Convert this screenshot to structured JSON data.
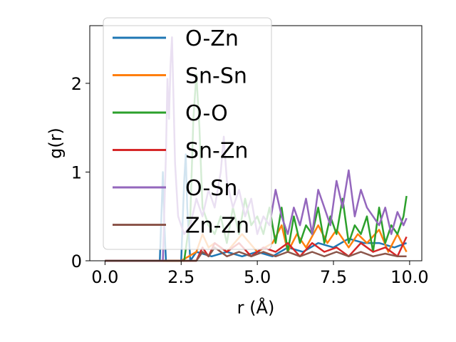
{
  "chart_data": {
    "type": "line",
    "xlabel": "r (Å)",
    "ylabel": "g(r)",
    "xlim": [
      -0.5,
      10.4
    ],
    "ylim": [
      0,
      2.65
    ],
    "xticks": [
      0.0,
      2.5,
      5.0,
      7.5,
      10.0
    ],
    "xtick_labels": [
      "0.0",
      "2.5",
      "5.0",
      "7.5",
      "10.0"
    ],
    "yticks": [
      0,
      1,
      2
    ],
    "ytick_labels": [
      "0",
      "1",
      "2"
    ],
    "grid": false,
    "legend_position": "top-left",
    "series": [
      {
        "name": "O-Zn",
        "color": "#1f77b4",
        "x": [
          0.0,
          1.8,
          1.85,
          1.9,
          1.95,
          2.0,
          2.1,
          2.2,
          2.5,
          2.6,
          2.65,
          2.7,
          2.8,
          3.0,
          3.5,
          4.0,
          4.5,
          5.0,
          5.5,
          6.0,
          6.5,
          7.0,
          7.5,
          8.0,
          8.5,
          9.0,
          9.5,
          9.9
        ],
        "y": [
          0,
          0,
          0.5,
          1.0,
          0.4,
          0,
          0,
          0,
          0,
          0.9,
          1.2,
          0.6,
          0,
          0.1,
          0.05,
          0.1,
          0.05,
          0.1,
          0.05,
          0.15,
          0.1,
          0.2,
          0.15,
          0.25,
          0.2,
          0.2,
          0.15,
          0.2
        ]
      },
      {
        "name": "Sn-Sn",
        "color": "#ff7f0e",
        "x": [
          0.0,
          2.5,
          3.0,
          3.2,
          3.4,
          3.6,
          4.0,
          4.5,
          5.0,
          5.5,
          5.8,
          6.0,
          6.3,
          6.6,
          7.0,
          7.3,
          7.6,
          8.0,
          8.3,
          8.6,
          9.0,
          9.3,
          9.6,
          9.9
        ],
        "y": [
          0,
          0,
          0.1,
          0.3,
          0.15,
          0.2,
          0.1,
          0.3,
          0.1,
          0.2,
          0.4,
          0.1,
          0.3,
          0.15,
          0.4,
          0.2,
          0.35,
          0.15,
          0.3,
          0.2,
          0.35,
          0.1,
          0.3,
          0.1
        ]
      },
      {
        "name": "O-O",
        "color": "#2ca02c",
        "x": [
          0.0,
          2.6,
          2.8,
          2.9,
          3.0,
          3.1,
          3.2,
          3.4,
          3.6,
          3.8,
          4.0,
          4.2,
          4.4,
          4.6,
          4.8,
          5.0,
          5.2,
          5.4,
          5.6,
          5.8,
          6.0,
          6.2,
          6.4,
          6.6,
          6.8,
          7.0,
          7.2,
          7.4,
          7.6,
          7.8,
          8.0,
          8.2,
          8.4,
          8.6,
          8.8,
          9.0,
          9.2,
          9.4,
          9.6,
          9.8,
          9.9
        ],
        "y": [
          0,
          0,
          0.5,
          1.6,
          2.1,
          1.5,
          0.6,
          0.4,
          0.3,
          0.5,
          0.2,
          0.6,
          0.3,
          0.7,
          0.4,
          0.5,
          0.3,
          0.6,
          0.2,
          0.6,
          0.1,
          0.5,
          0.2,
          0.4,
          0.3,
          0.6,
          0.2,
          0.5,
          0.3,
          0.7,
          0.2,
          0.4,
          0.3,
          0.5,
          0.1,
          0.6,
          0.2,
          0.4,
          0.3,
          0.5,
          0.73
        ]
      },
      {
        "name": "Sn-Zn",
        "color": "#d62728",
        "x": [
          0.0,
          3.0,
          3.2,
          3.4,
          3.6,
          4.0,
          4.4,
          4.8,
          5.2,
          5.6,
          6.0,
          6.4,
          6.8,
          7.2,
          7.6,
          8.0,
          8.4,
          8.8,
          9.2,
          9.6,
          9.9
        ],
        "y": [
          0,
          0,
          0.15,
          0.05,
          0.2,
          0.1,
          0.2,
          0.05,
          0.15,
          0.1,
          0.2,
          0.05,
          0.2,
          0.1,
          0.15,
          0.05,
          0.2,
          0.1,
          0.15,
          0.05,
          0.27
        ]
      },
      {
        "name": "O-Sn",
        "color": "#9467bd",
        "x": [
          0.0,
          1.9,
          2.0,
          2.05,
          2.1,
          2.15,
          2.2,
          2.25,
          2.3,
          2.4,
          2.6,
          2.8,
          3.0,
          3.2,
          3.4,
          3.6,
          3.8,
          3.9,
          4.0,
          4.2,
          4.4,
          4.6,
          4.8,
          5.0,
          5.2,
          5.4,
          5.6,
          5.8,
          6.0,
          6.2,
          6.4,
          6.6,
          6.8,
          7.0,
          7.2,
          7.4,
          7.6,
          7.8,
          8.0,
          8.2,
          8.4,
          8.6,
          8.8,
          9.0,
          9.2,
          9.4,
          9.6,
          9.8,
          9.9
        ],
        "y": [
          0,
          0,
          1.2,
          2.05,
          1.6,
          2.2,
          2.52,
          1.8,
          1.1,
          0.5,
          0.3,
          0.4,
          0.7,
          0.5,
          0.8,
          0.6,
          1.0,
          1.4,
          0.9,
          0.6,
          0.8,
          0.5,
          0.7,
          0.3,
          0.5,
          0.4,
          0.8,
          0.5,
          0.3,
          0.6,
          0.4,
          0.7,
          0.3,
          0.8,
          0.6,
          0.4,
          0.9,
          0.6,
          1.02,
          0.5,
          0.8,
          0.6,
          0.5,
          0.4,
          0.6,
          0.3,
          0.55,
          0.4,
          0.48
        ]
      },
      {
        "name": "Zn-Zn",
        "color": "#8c564b",
        "x": [
          0.0,
          3.0,
          3.2,
          3.4,
          3.6,
          4.0,
          4.4,
          4.8,
          5.2,
          5.6,
          6.0,
          6.4,
          6.8,
          7.2,
          7.6,
          8.0,
          8.4,
          8.8,
          9.2,
          9.6,
          9.9
        ],
        "y": [
          0,
          0,
          0.1,
          0.05,
          0.15,
          0.05,
          0.1,
          0.05,
          0.1,
          0.05,
          0.1,
          0.05,
          0.1,
          0.05,
          0.1,
          0.05,
          0.1,
          0.05,
          0.08,
          0.05,
          0.05
        ]
      }
    ]
  }
}
